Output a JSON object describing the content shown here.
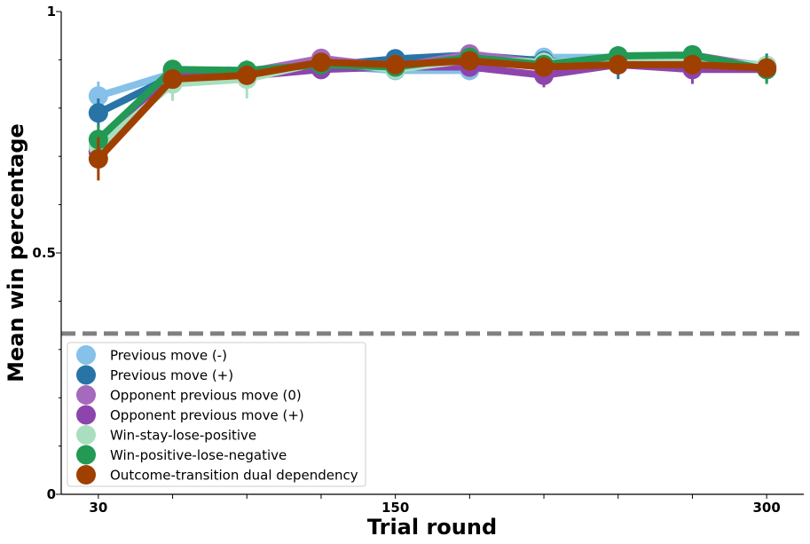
{
  "chart_data": {
    "type": "line",
    "xlabel": "Trial round",
    "ylabel": "Mean win percentage",
    "x_tick_labels": [
      "30",
      "150",
      "300"
    ],
    "y_tick_labels": [
      "0",
      "0.5",
      "1"
    ],
    "x": [
      30,
      60,
      90,
      120,
      150,
      180,
      210,
      240,
      270,
      300
    ],
    "ylim": [
      0,
      1
    ],
    "xlim": [
      15,
      315
    ],
    "reference_line": {
      "y": 0.333,
      "style": "dashed",
      "color": "#808080"
    },
    "legend_position": "lower-left",
    "series": [
      {
        "name": "Previous move (-)",
        "color": "#85c1e9",
        "values": [
          0.825,
          0.872,
          0.868,
          0.888,
          0.878,
          0.878,
          0.905,
          0.905,
          0.905,
          0.888
        ],
        "errors": [
          0.03,
          0.02,
          0.02,
          0.015,
          0.02,
          0.02,
          0.015,
          0.015,
          0.02,
          0.02
        ]
      },
      {
        "name": "Previous move (+)",
        "color": "#2874a6",
        "values": [
          0.79,
          0.866,
          0.866,
          0.888,
          0.902,
          0.91,
          0.898,
          0.89,
          0.898,
          0.888
        ],
        "errors": [
          0.03,
          0.02,
          0.02,
          0.015,
          0.015,
          0.015,
          0.02,
          0.03,
          0.025,
          0.025
        ]
      },
      {
        "name": "Opponent previous move (0)",
        "color": "#a569bd",
        "values": [
          0.71,
          0.878,
          0.875,
          0.903,
          0.885,
          0.912,
          0.893,
          0.9,
          0.91,
          0.885
        ],
        "errors": [
          0.03,
          0.02,
          0.02,
          0.015,
          0.02,
          0.015,
          0.02,
          0.02,
          0.02,
          0.02
        ]
      },
      {
        "name": "Opponent previous move (+)",
        "color": "#8e44ad",
        "values": [
          0.71,
          0.866,
          0.866,
          0.88,
          0.885,
          0.885,
          0.868,
          0.89,
          0.88,
          0.88
        ],
        "errors": [
          0.03,
          0.02,
          0.02,
          0.02,
          0.02,
          0.02,
          0.025,
          0.02,
          0.03,
          0.025
        ]
      },
      {
        "name": "Win-stay-lose-positive",
        "color": "#a9dfbf",
        "values": [
          0.72,
          0.85,
          0.86,
          0.895,
          0.88,
          0.9,
          0.895,
          0.9,
          0.9,
          0.888
        ],
        "errors": [
          0.035,
          0.035,
          0.04,
          0.02,
          0.02,
          0.015,
          0.02,
          0.02,
          0.02,
          0.02
        ]
      },
      {
        "name": "Win-positive-lose-negative",
        "color": "#229954",
        "values": [
          0.735,
          0.88,
          0.878,
          0.89,
          0.885,
          0.905,
          0.89,
          0.908,
          0.91,
          0.88
        ],
        "errors": [
          0.03,
          0.02,
          0.02,
          0.015,
          0.02,
          0.015,
          0.02,
          0.015,
          0.02,
          0.03
        ]
      },
      {
        "name": "Outcome-transition dual dependency",
        "color": "#a04000",
        "values": [
          0.695,
          0.86,
          0.868,
          0.895,
          0.89,
          0.898,
          0.885,
          0.89,
          0.89,
          0.883
        ],
        "errors": [
          0.045,
          0.02,
          0.02,
          0.015,
          0.015,
          0.015,
          0.02,
          0.02,
          0.02,
          0.02
        ]
      }
    ]
  }
}
